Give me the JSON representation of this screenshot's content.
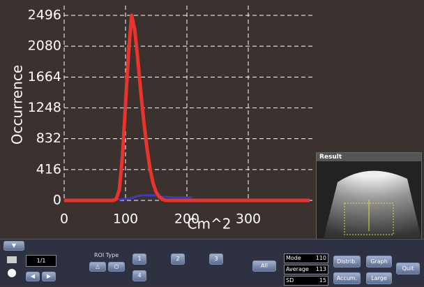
{
  "chart_data": {
    "type": "line",
    "y_label": "Occurrence",
    "x_label": "Cm^2",
    "xlim": [
      0,
      400
    ],
    "ylim": [
      0,
      2496
    ],
    "xticks": [
      0,
      100,
      200,
      300
    ],
    "yticks": [
      0,
      416,
      832,
      1248,
      1664,
      2080,
      2496
    ],
    "grid": true,
    "series": [
      {
        "color": "#e8342c",
        "x": [
          0,
          80,
          85,
          90,
          95,
          100,
          105,
          110,
          115,
          120,
          125,
          130,
          135,
          140,
          145,
          150,
          155,
          160,
          165,
          400
        ],
        "values": [
          0,
          0,
          20,
          150,
          600,
          1300,
          2000,
          2496,
          2300,
          1900,
          1450,
          1050,
          700,
          420,
          230,
          110,
          50,
          15,
          0,
          0
        ]
      },
      {
        "color": "#3a3cb8",
        "x": [
          85,
          100,
          110,
          120,
          130,
          150,
          160,
          180,
          208
        ],
        "values": [
          10,
          20,
          30,
          60,
          70,
          70,
          50,
          40,
          40
        ]
      }
    ]
  },
  "result": {
    "title": "Result"
  },
  "controls": {
    "page": "1/1",
    "roi_type": "ROI Type",
    "rois": [
      "1",
      "2",
      "3",
      "4"
    ],
    "all": "All",
    "stats": [
      [
        "Mode",
        "110"
      ],
      [
        "Average",
        "113"
      ],
      [
        "SD",
        "15"
      ]
    ],
    "buttons": [
      "Distrib.",
      "Graph",
      "Accum.",
      "Large",
      "Quit"
    ]
  }
}
